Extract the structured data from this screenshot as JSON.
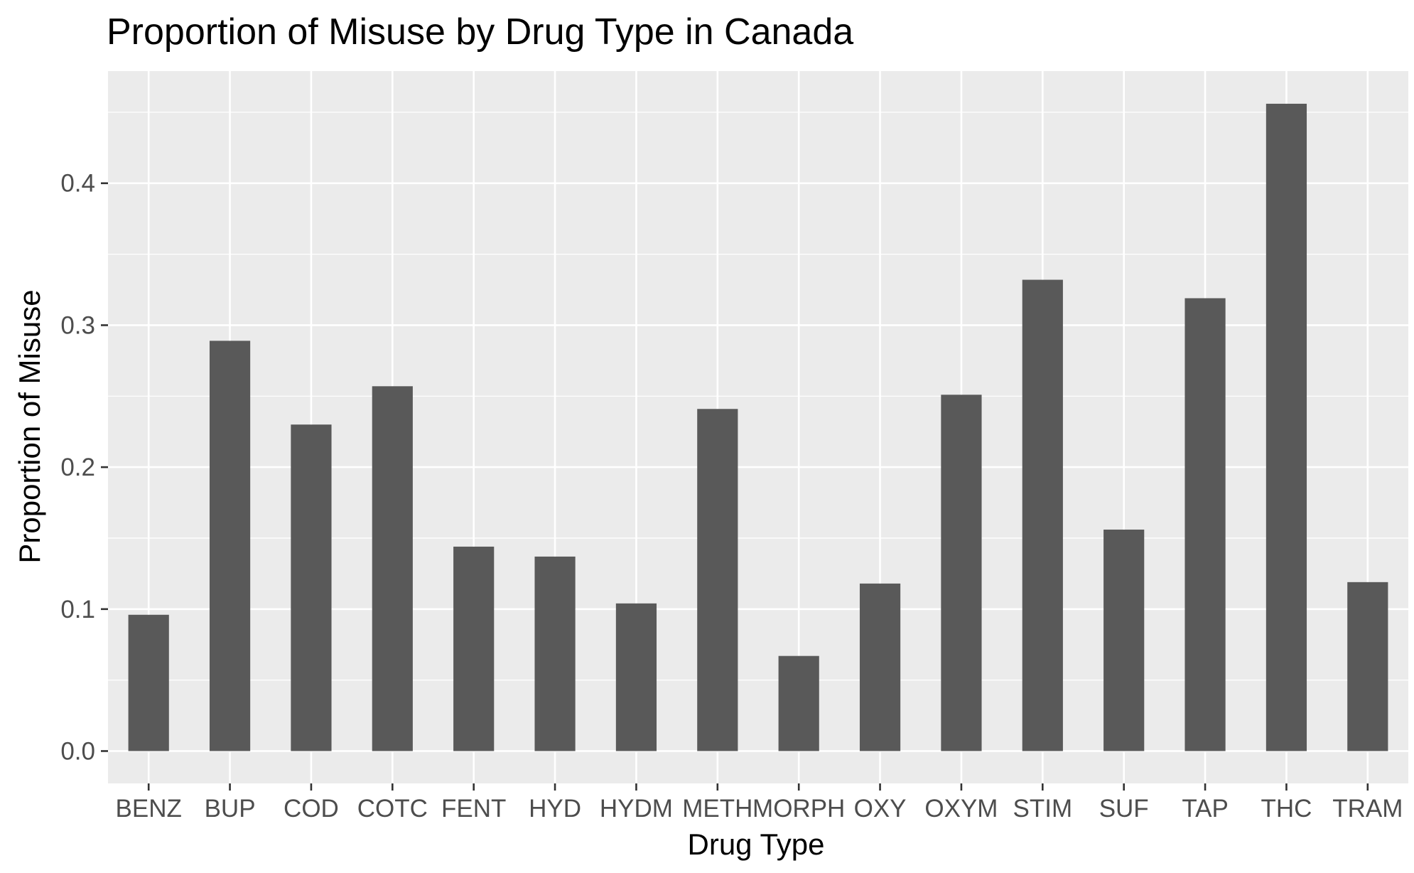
{
  "chart_data": {
    "type": "bar",
    "title": "Proportion of Misuse by Drug Type in Canada",
    "xlabel": "Drug Type",
    "ylabel": "Proportion of Misuse",
    "categories": [
      "BENZ",
      "BUP",
      "COD",
      "COTC",
      "FENT",
      "HYD",
      "HYDM",
      "METH",
      "MORPH",
      "OXY",
      "OXYM",
      "STIM",
      "SUF",
      "TAP",
      "THC",
      "TRAM"
    ],
    "values": [
      0.096,
      0.289,
      0.23,
      0.257,
      0.144,
      0.137,
      0.104,
      0.241,
      0.067,
      0.118,
      0.251,
      0.332,
      0.156,
      0.319,
      0.456,
      0.119
    ],
    "ylim": [
      -0.0228,
      0.479
    ],
    "yticks": [
      0.0,
      0.1,
      0.2,
      0.3,
      0.4
    ],
    "ytick_labels": [
      "0.0",
      "0.1",
      "0.2",
      "0.3",
      "0.4"
    ],
    "grid": true,
    "legend": "none",
    "colors": {
      "bar": "#595959",
      "panel": "#ebebeb",
      "grid": "#ffffff",
      "tick": "#333333",
      "tick_label": "#4d4d4d"
    }
  }
}
